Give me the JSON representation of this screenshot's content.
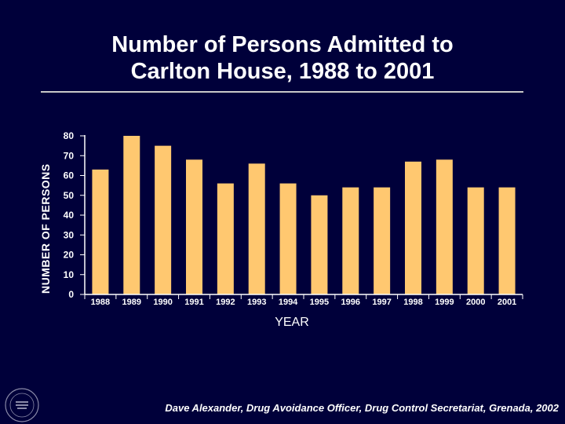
{
  "slide": {
    "title_line1": "Number of Persons Admitted to",
    "title_line2": "Carlton House, 1988 to 2001",
    "footer": "Dave Alexander, Drug Avoidance Officer, Drug Control Secretariat, Grenada, 2002",
    "background_color": "#00003a",
    "bar_color": "#ffc870",
    "seal_icon": "government-seal"
  },
  "chart_data": {
    "type": "bar",
    "title": "Number of Persons Admitted to Carlton House, 1988 to 2001",
    "xlabel": "YEAR",
    "ylabel": "NUMBER OF PERSONS",
    "categories": [
      "1988",
      "1989",
      "1990",
      "1991",
      "1992",
      "1993",
      "1994",
      "1995",
      "1996",
      "1997",
      "1998",
      "1999",
      "2000",
      "2001"
    ],
    "values": [
      63,
      80,
      75,
      68,
      56,
      66,
      56,
      50,
      54,
      54,
      67,
      68,
      54,
      54
    ],
    "ylim": [
      0,
      80
    ],
    "yticks": [
      0,
      10,
      20,
      30,
      40,
      50,
      60,
      70,
      80
    ],
    "grid": false,
    "legend": "none"
  }
}
